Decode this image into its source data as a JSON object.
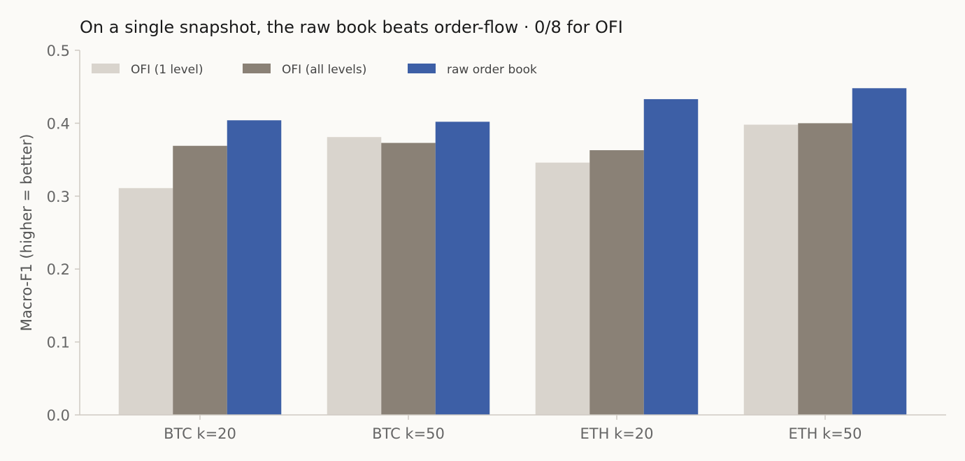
{
  "chart_data": {
    "type": "bar",
    "title": "On a single snapshot, the raw book beats order-flow  ·  0/8 for OFI",
    "xlabel": "",
    "ylabel": "Macro-F1  (higher = better)",
    "ylim": [
      0,
      0.5
    ],
    "yticks": [
      "0.0",
      "0.1",
      "0.2",
      "0.3",
      "0.4",
      "0.5"
    ],
    "categories": [
      "BTC k=20",
      "BTC k=50",
      "ETH k=20",
      "ETH k=50"
    ],
    "series": [
      {
        "name": "OFI (1 level)",
        "color": "#d9d4cd",
        "values": [
          0.311,
          0.381,
          0.346,
          0.398
        ]
      },
      {
        "name": "OFI (all levels)",
        "color": "#8a8176",
        "values": [
          0.369,
          0.373,
          0.363,
          0.4
        ]
      },
      {
        "name": "raw order book",
        "color": "#3d5fa6",
        "values": [
          0.404,
          0.402,
          0.433,
          0.448
        ]
      }
    ],
    "legend_position": "top-left",
    "grid": false
  }
}
